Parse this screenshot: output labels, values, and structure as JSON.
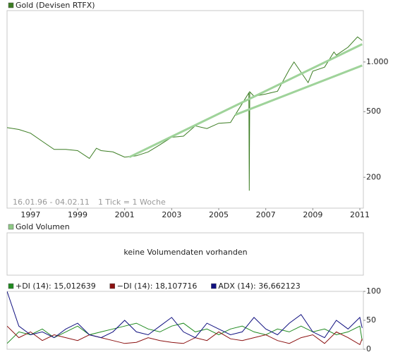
{
  "chart_data": [
    {
      "type": "line",
      "log_scale": true,
      "xlim": [
        1996,
        2011.15
      ],
      "xticks": [
        1997,
        1999,
        2001,
        2003,
        2005,
        2007,
        2009,
        2011
      ],
      "ylim": [
        130,
        2050
      ],
      "yticks": [
        200,
        500,
        {
          "value": 1000,
          "label": "1.000"
        }
      ],
      "annotations": [
        "16.01.96 - 04.02.11",
        "1 Tick = 1 Woche"
      ],
      "x": [
        1996.0,
        1996.5,
        1997.0,
        1997.5,
        1998.0,
        1998.5,
        1999.0,
        1999.5,
        1999.8,
        2000.0,
        2000.5,
        2001.0,
        2001.5,
        2002.0,
        2002.5,
        2003.0,
        2003.5,
        2004.0,
        2004.5,
        2005.0,
        2005.5,
        2006.0,
        2006.28,
        2006.3,
        2006.32,
        2006.5,
        2007.0,
        2007.5,
        2008.0,
        2008.2,
        2008.8,
        2009.0,
        2009.5,
        2009.9,
        2010.0,
        2010.5,
        2010.9,
        2011.1
      ],
      "series": [
        {
          "name": "Gold (Devisen RTFX)",
          "color": "#3c7d23",
          "values": [
            400,
            390,
            370,
            330,
            295,
            295,
            290,
            260,
            300,
            290,
            285,
            265,
            270,
            285,
            315,
            350,
            355,
            410,
            395,
            425,
            430,
            560,
            650,
            166,
            660,
            620,
            640,
            665,
            900,
            1000,
            750,
            880,
            930,
            1150,
            1100,
            1230,
            1420,
            1350
          ]
        },
        {
          "color": "#9fd39a",
          "x": [
            2001.2,
            2011.1
          ],
          "values": [
            265,
            1283
          ]
        },
        {
          "color": "#9fd39a",
          "x": [
            2005.7,
            2011.1
          ],
          "values": [
            478,
            953
          ]
        }
      ]
    },
    {
      "type": "volume",
      "legend": "Gold Volumen",
      "color": "#8fca86",
      "message": "keine Volumendaten vorhanden"
    },
    {
      "type": "line",
      "xlim": [
        1996,
        2011.15
      ],
      "ylim": [
        0,
        100
      ],
      "yticks": [
        0,
        50,
        100
      ],
      "x": [
        1996.0,
        1996.5,
        1997.0,
        1997.5,
        1998.0,
        1998.5,
        1999.0,
        1999.5,
        2000.0,
        2000.5,
        2001.0,
        2001.5,
        2002.0,
        2002.5,
        2003.0,
        2003.5,
        2004.0,
        2004.5,
        2005.0,
        2005.5,
        2006.0,
        2006.5,
        2007.0,
        2007.5,
        2008.0,
        2008.5,
        2009.0,
        2009.5,
        2010.0,
        2010.5,
        2011.0,
        2011.1
      ],
      "series": [
        {
          "name": "+DI (14): 15,012639",
          "color": "#1f8a1f",
          "values": [
            10,
            30,
            25,
            35,
            20,
            30,
            40,
            25,
            30,
            35,
            40,
            45,
            35,
            30,
            40,
            45,
            30,
            35,
            25,
            35,
            40,
            30,
            25,
            35,
            30,
            40,
            30,
            35,
            25,
            30,
            40,
            15.012639
          ]
        },
        {
          "name": "−DI (14): 18,107716",
          "color": "#8b1010",
          "values": [
            40,
            20,
            30,
            15,
            25,
            20,
            15,
            25,
            20,
            15,
            10,
            12,
            20,
            15,
            12,
            10,
            20,
            15,
            30,
            18,
            15,
            20,
            25,
            15,
            10,
            20,
            25,
            10,
            30,
            20,
            8,
            18.107716
          ]
        },
        {
          "name": "ADX (14): 36,662123",
          "color": "#101080",
          "values": [
            100,
            40,
            25,
            30,
            20,
            35,
            45,
            25,
            20,
            30,
            50,
            30,
            25,
            40,
            55,
            30,
            20,
            45,
            35,
            25,
            30,
            55,
            35,
            25,
            45,
            60,
            30,
            20,
            50,
            35,
            55,
            36.662123
          ]
        }
      ]
    }
  ]
}
